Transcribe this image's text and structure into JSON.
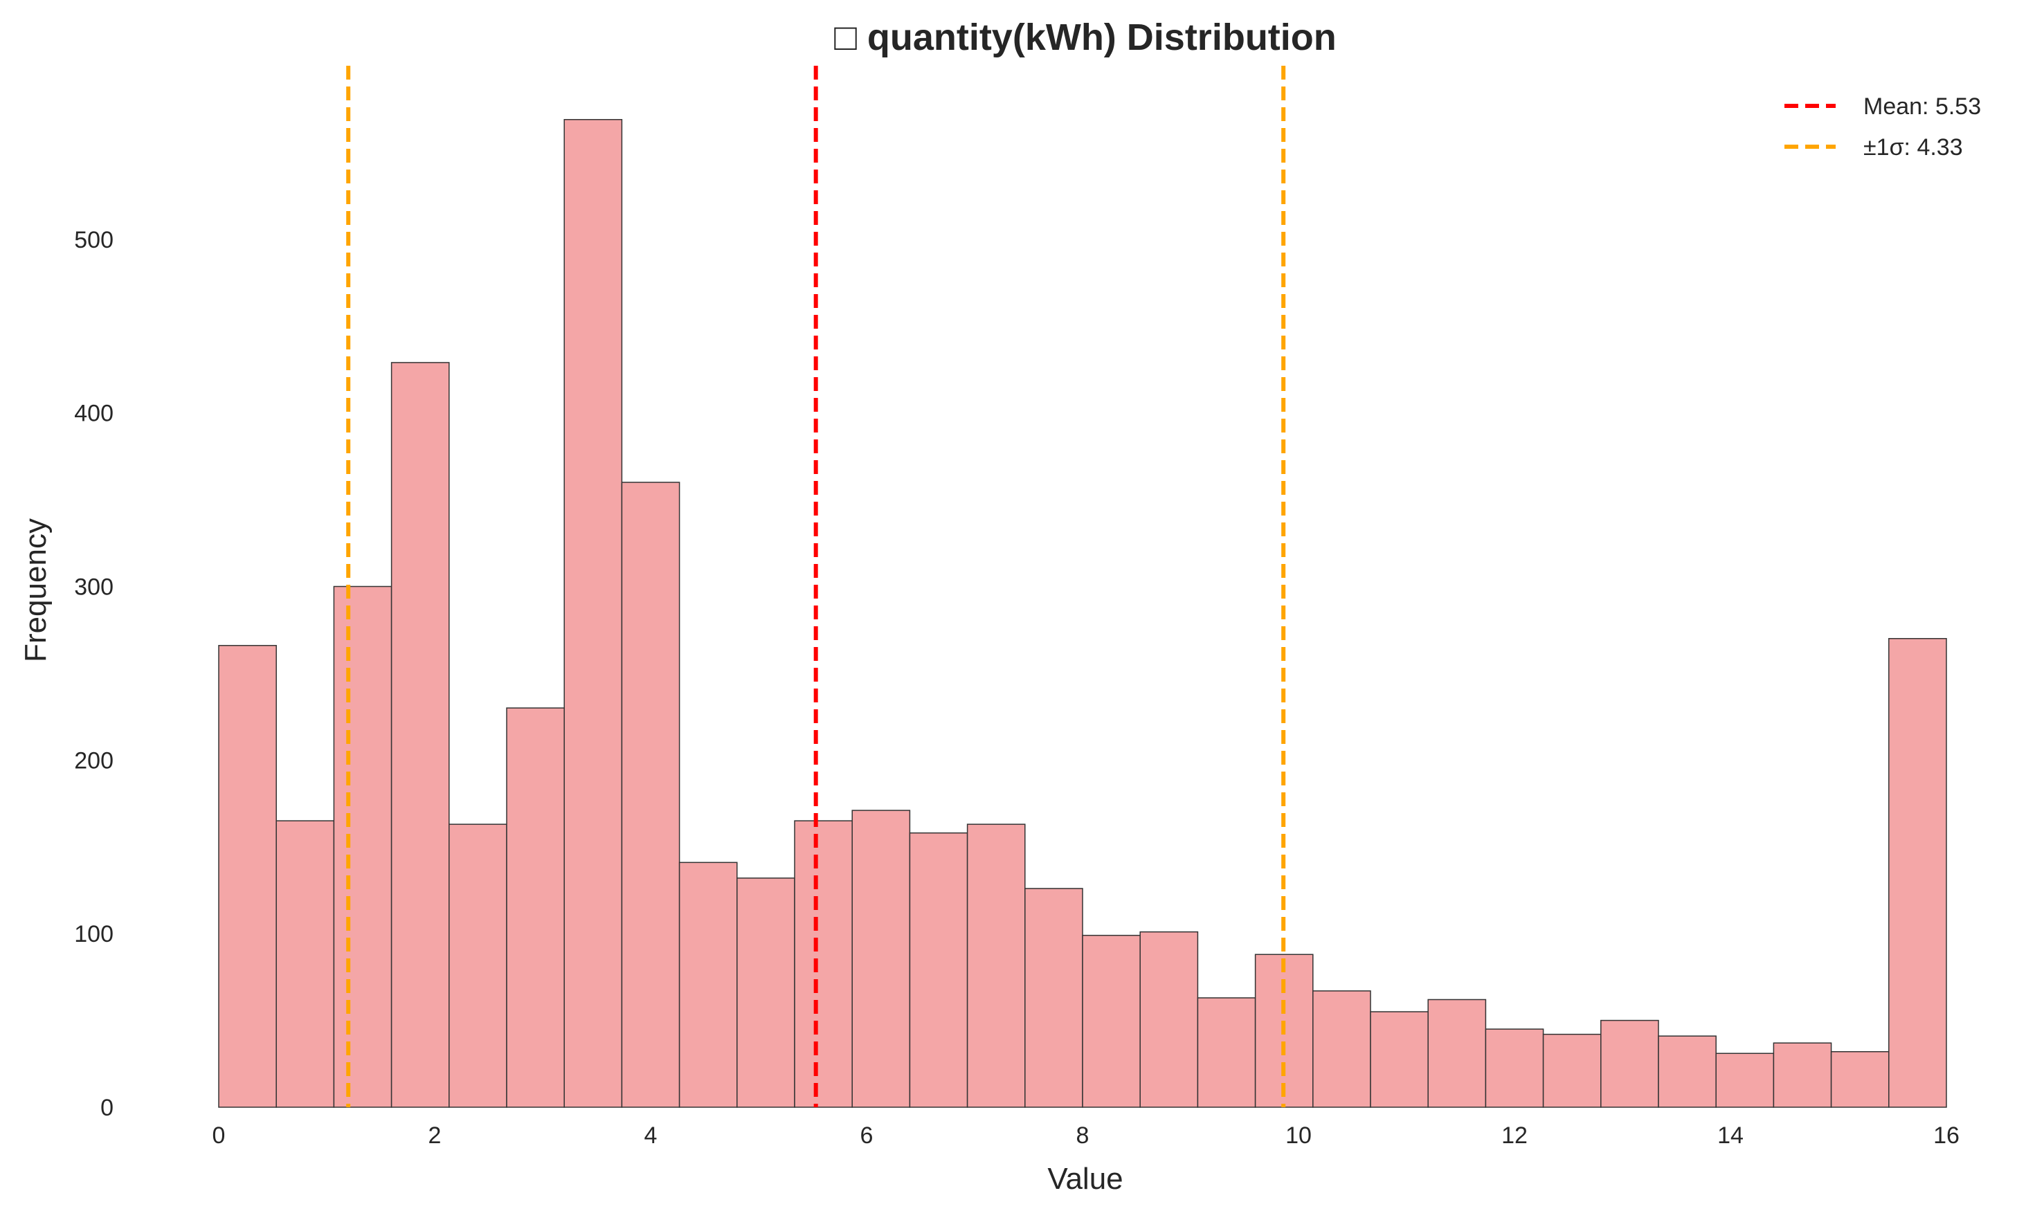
{
  "chart_data": {
    "type": "bar",
    "subtype": "histogram",
    "title": "□ quantity(kWh) Distribution",
    "xlabel": "Value",
    "ylabel": "Frequency",
    "xlim": [
      0,
      16
    ],
    "ylim": [
      0,
      600
    ],
    "xticks": [
      0,
      2,
      4,
      6,
      8,
      10,
      12,
      14,
      16
    ],
    "yticks": [
      0,
      100,
      200,
      300,
      400,
      500
    ],
    "grid": false,
    "bin_start": 0,
    "bin_end": 16,
    "values": [
      266,
      165,
      300,
      429,
      163,
      230,
      569,
      360,
      141,
      132,
      165,
      171,
      158,
      163,
      126,
      99,
      101,
      63,
      88,
      67,
      55,
      62,
      45,
      42,
      50,
      41,
      31,
      37,
      32,
      270
    ],
    "bar_color": "#f4a6a7",
    "bar_edge_color": "#333333",
    "reference_lines": {
      "mean": {
        "value": 5.53,
        "label": "Mean: 5.53",
        "color": "#ff0000"
      },
      "sigma": {
        "value": 4.33,
        "label": "±1σ: 4.33",
        "lower": 1.2,
        "upper": 9.86,
        "color": "#ffa500"
      }
    },
    "legend": {
      "position": "top-right",
      "entries": [
        "Mean: 5.53",
        "±1σ: 4.33"
      ]
    }
  }
}
